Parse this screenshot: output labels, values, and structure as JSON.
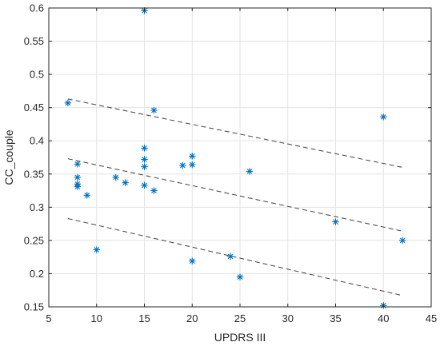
{
  "chart_data": {
    "type": "scatter",
    "title": "",
    "xlabel": "UPDRS III",
    "ylabel": "CC_couple",
    "xlim": [
      5,
      45
    ],
    "ylim": [
      0.15,
      0.6
    ],
    "xticks": [
      5,
      10,
      15,
      20,
      25,
      30,
      35,
      40,
      45
    ],
    "xtick_labels": [
      "5",
      "10",
      "15",
      "20",
      "25",
      "30",
      "35",
      "40",
      "45"
    ],
    "yticks": [
      0.15,
      0.2,
      0.25,
      0.3,
      0.35,
      0.4,
      0.45,
      0.5,
      0.55,
      0.6
    ],
    "ytick_labels": [
      "0.15",
      "0.2",
      "0.25",
      "0.3",
      "0.35",
      "0.4",
      "0.45",
      "0.5",
      "0.55",
      "0.6"
    ],
    "grid": true,
    "marker": "asterisk",
    "marker_color": "#0072BD",
    "line_color": "#404040",
    "points": [
      {
        "x": 7,
        "y": 0.457
      },
      {
        "x": 8,
        "y": 0.365
      },
      {
        "x": 8,
        "y": 0.345
      },
      {
        "x": 8,
        "y": 0.335
      },
      {
        "x": 8,
        "y": 0.331
      },
      {
        "x": 9,
        "y": 0.318
      },
      {
        "x": 10,
        "y": 0.236
      },
      {
        "x": 12,
        "y": 0.345
      },
      {
        "x": 13,
        "y": 0.337
      },
      {
        "x": 15,
        "y": 0.596
      },
      {
        "x": 15,
        "y": 0.389
      },
      {
        "x": 15,
        "y": 0.372
      },
      {
        "x": 15,
        "y": 0.361
      },
      {
        "x": 15,
        "y": 0.333
      },
      {
        "x": 16,
        "y": 0.446
      },
      {
        "x": 16,
        "y": 0.325
      },
      {
        "x": 19,
        "y": 0.363
      },
      {
        "x": 20,
        "y": 0.377
      },
      {
        "x": 20,
        "y": 0.364
      },
      {
        "x": 20,
        "y": 0.219
      },
      {
        "x": 24,
        "y": 0.226
      },
      {
        "x": 25,
        "y": 0.195
      },
      {
        "x": 26,
        "y": 0.354
      },
      {
        "x": 35,
        "y": 0.278
      },
      {
        "x": 40,
        "y": 0.436
      },
      {
        "x": 40,
        "y": 0.152
      },
      {
        "x": 42,
        "y": 0.25
      }
    ],
    "lines": [
      {
        "style": "dashed",
        "x": [
          7,
          42
        ],
        "y": [
          0.463,
          0.36
        ]
      },
      {
        "style": "dashed",
        "x": [
          7,
          42
        ],
        "y": [
          0.373,
          0.264
        ]
      },
      {
        "style": "dashed",
        "x": [
          7,
          42
        ],
        "y": [
          0.283,
          0.167
        ]
      }
    ]
  }
}
